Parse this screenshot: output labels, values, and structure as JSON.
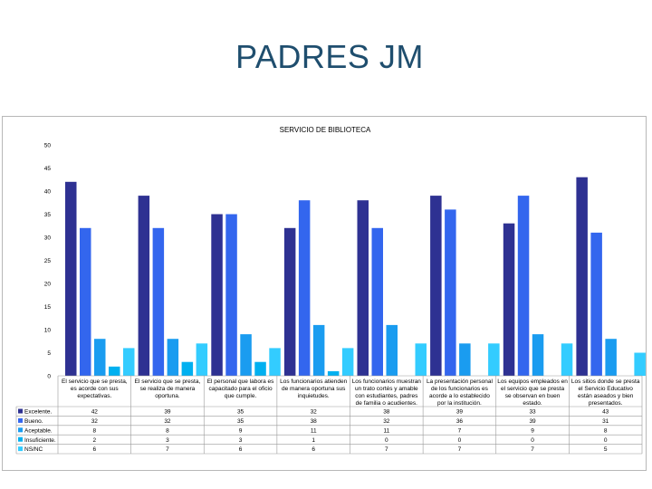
{
  "page": {
    "title": "PADRES JM"
  },
  "chart_data": {
    "type": "bar",
    "title": "SERVICIO DE BIBLIOTECA",
    "ylim": [
      0,
      50
    ],
    "yticks": [
      0,
      5,
      10,
      15,
      20,
      25,
      30,
      35,
      40,
      45,
      50
    ],
    "grid": false,
    "legend": "data table",
    "categories": [
      [
        "El servicio que se presta,",
        "es acorde con sus",
        "expectativas."
      ],
      [
        "El servicio que se presta,",
        "se realiza de manera",
        "oportuna."
      ],
      [
        "El personal que labora es",
        "capacitado para el oficio",
        "que cumple."
      ],
      [
        "Los funcionarios atienden",
        "de manera oportuna sus",
        "inquietudes."
      ],
      [
        "Los funcionarios muestran",
        "un trato cortés y amable",
        "con estudiantes, padres",
        "de familia o acudientes."
      ],
      [
        "La presentación personal",
        "de los funcionarios es",
        "acorde a lo establecido",
        "por la institución."
      ],
      [
        "Los equipos empleados en",
        "el servicio que se presta",
        "se observan en buen",
        "estado."
      ],
      [
        "Los sitios donde se presta",
        "el Servicio Educativo",
        "están aseados y bien",
        "presentados."
      ]
    ],
    "series": [
      {
        "name": "Excelente.",
        "color": "#2e3192",
        "values": [
          42,
          39,
          35,
          32,
          38,
          39,
          33,
          43
        ]
      },
      {
        "name": "Bueno.",
        "color": "#3366ee",
        "values": [
          32,
          32,
          35,
          38,
          32,
          36,
          39,
          31
        ]
      },
      {
        "name": "Aceptable.",
        "color": "#1a9cf0",
        "values": [
          8,
          8,
          9,
          11,
          11,
          7,
          9,
          8
        ]
      },
      {
        "name": "Insuficiente.",
        "color": "#00b0f0",
        "values": [
          2,
          3,
          3,
          1,
          0,
          0,
          0,
          0
        ]
      },
      {
        "name": "NS/NC",
        "color": "#33ccff",
        "values": [
          6,
          7,
          6,
          6,
          7,
          7,
          7,
          5
        ]
      }
    ]
  }
}
